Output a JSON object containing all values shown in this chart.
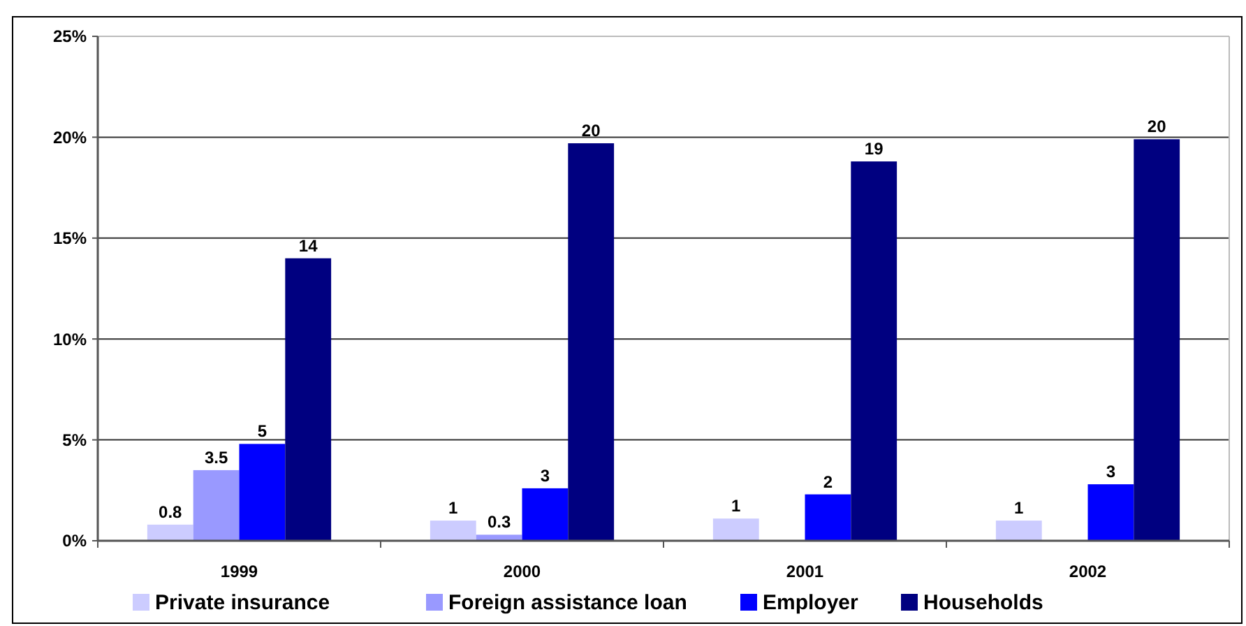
{
  "chart_data": {
    "type": "bar",
    "categories": [
      "1999",
      "2000",
      "2001",
      "2002"
    ],
    "series": [
      {
        "name": "Private insurance",
        "color": "#ccccff",
        "values": [
          0.8,
          1.0,
          1.1,
          1.0
        ],
        "value_labels": [
          "0.8",
          "1",
          "1",
          "1"
        ]
      },
      {
        "name": "Foreign assistance loan",
        "color": "#9999ff",
        "values": [
          3.5,
          0.3,
          null,
          null
        ],
        "value_labels": [
          "3.5",
          "0.3",
          null,
          null
        ]
      },
      {
        "name": "Employer",
        "color": "#0000ff",
        "values": [
          4.8,
          2.6,
          2.3,
          2.8
        ],
        "value_labels": [
          "5",
          "3",
          "2",
          "3"
        ]
      },
      {
        "name": "Households",
        "color": "#000080",
        "values": [
          14.0,
          19.7,
          18.8,
          19.9
        ],
        "value_labels": [
          "14",
          "20",
          "19",
          "20"
        ]
      }
    ],
    "ylim": [
      0,
      25
    ],
    "yticks": [
      {
        "value": 0,
        "label": "0%"
      },
      {
        "value": 5,
        "label": "5%"
      },
      {
        "value": 10,
        "label": "10%"
      },
      {
        "value": 15,
        "label": "15%"
      },
      {
        "value": 20,
        "label": "20%"
      },
      {
        "value": 25,
        "label": "25%"
      }
    ],
    "grid": "y",
    "legend": "bottom"
  }
}
